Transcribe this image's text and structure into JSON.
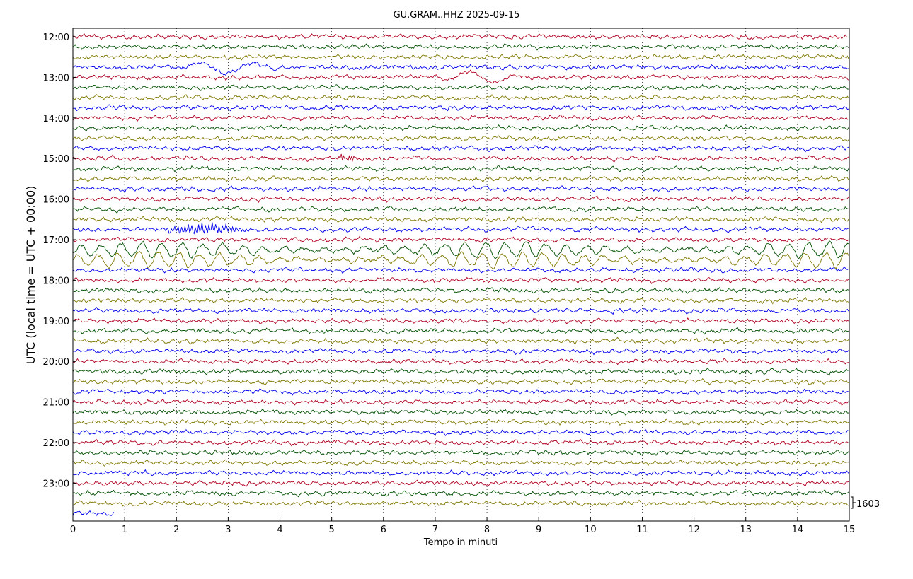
{
  "chart_data": {
    "type": "line",
    "title": "GU.GRAM..HHZ 2025-09-15",
    "xlabel": "Tempo in minuti",
    "ylabel": "UTC (local time = UTC + 00:00)",
    "xlim": [
      0,
      15
    ],
    "x_ticks": [
      "0",
      "1",
      "2",
      "3",
      "4",
      "5",
      "6",
      "7",
      "8",
      "9",
      "10",
      "11",
      "12",
      "13",
      "14",
      "15"
    ],
    "y_tick_labels": [
      "12:00",
      "13:00",
      "14:00",
      "15:00",
      "16:00",
      "17:00",
      "18:00",
      "19:00",
      "20:00",
      "21:00",
      "22:00",
      "23:00"
    ],
    "trace_interval_minutes": 15,
    "start_time": "12:00",
    "end_time": "23:45",
    "scale_label": "1603",
    "grid": "vertical dotted",
    "trace_colors": [
      "#b00020",
      "#005000",
      "#807800",
      "#0000ee"
    ],
    "events": [
      {
        "trace_start": "12:45",
        "x_start": 1.8,
        "x_end": 4.0,
        "note": "low-frequency swings"
      },
      {
        "trace_start": "13:00",
        "x_start": 7.0,
        "x_end": 8.8,
        "note": "low-frequency swings"
      },
      {
        "trace_start": "15:00",
        "x_start": 5.0,
        "x_end": 5.5,
        "note": "burst"
      },
      {
        "trace_start": "16:45",
        "x_start": 1.7,
        "x_end": 3.6,
        "note": "strong burst"
      },
      {
        "trace_start": "17:15",
        "x_start": 0.0,
        "x_end": 15.0,
        "note": "large oscillations"
      },
      {
        "trace_start": "17:30",
        "x_start": 0.0,
        "x_end": 15.0,
        "note": "large oscillations"
      }
    ]
  }
}
